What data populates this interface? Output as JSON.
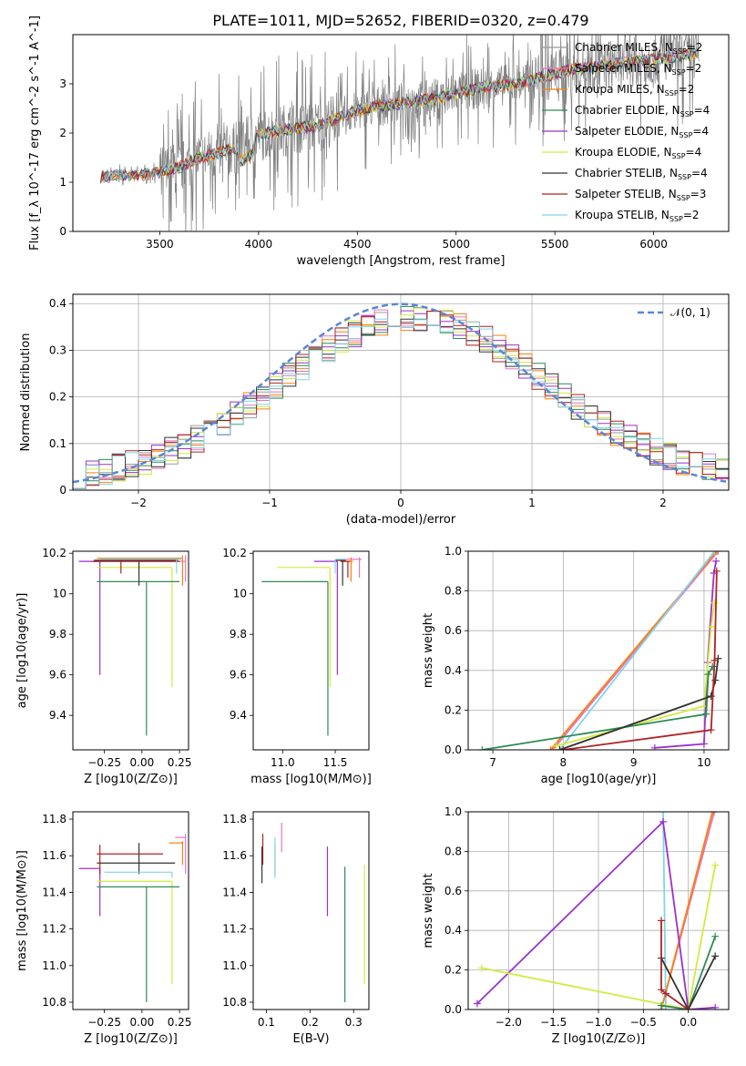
{
  "figure": {
    "title": "PLATE=1011, MJD=52652, FIBERID=0320, z=0.479"
  },
  "chart_data": [
    {
      "id": "spectrum",
      "type": "line",
      "xlabel": "wavelength [Angstrom, rest frame]",
      "ylabel": "Flux [f_λ 10^-17 erg cm^-2 s^-1 A^-1]",
      "xlim": [
        3060,
        6380
      ],
      "ylim": [
        0,
        4.0
      ],
      "xticks": [
        3500,
        4000,
        4500,
        5000,
        5500,
        6000
      ],
      "yticks": [
        0,
        1,
        2,
        3
      ],
      "grid": false,
      "legend_position": "top-right",
      "data_color": "#808080",
      "continuum": [
        [
          3200,
          1.1
        ],
        [
          3300,
          1.15
        ],
        [
          3400,
          1.15
        ],
        [
          3500,
          1.2
        ],
        [
          3600,
          1.3
        ],
        [
          3700,
          1.5
        ],
        [
          3800,
          1.6
        ],
        [
          3900,
          1.7
        ],
        [
          4000,
          1.95
        ],
        [
          4100,
          2.05
        ],
        [
          4200,
          2.1
        ],
        [
          4300,
          2.15
        ],
        [
          4400,
          2.3
        ],
        [
          4500,
          2.45
        ],
        [
          4600,
          2.55
        ],
        [
          4700,
          2.6
        ],
        [
          4800,
          2.65
        ],
        [
          4900,
          2.7
        ],
        [
          5000,
          2.8
        ],
        [
          5100,
          2.9
        ],
        [
          5200,
          2.95
        ],
        [
          5300,
          3.0
        ],
        [
          5400,
          3.1
        ],
        [
          5500,
          3.2
        ],
        [
          5600,
          3.3
        ],
        [
          5700,
          3.35
        ],
        [
          5800,
          3.4
        ],
        [
          5900,
          3.45
        ],
        [
          6000,
          3.5
        ],
        [
          6100,
          3.55
        ],
        [
          6200,
          3.6
        ]
      ],
      "series": [
        {
          "name": "Chabrier MILES, N_SSP=2",
          "label_main": "Chabrier MILES, N",
          "label_sub": "SSP",
          "label_tail": "=2",
          "color": "#9b9b9b"
        },
        {
          "name": "Salpeter MILES, N_SSP=2",
          "label_main": "Salpeter MILES, N",
          "label_sub": "SSP",
          "label_tail": "=2",
          "color": "#e377c2"
        },
        {
          "name": "Kroupa MILES, N_SSP=2",
          "label_main": "Kroupa MILES, N",
          "label_sub": "SSP",
          "label_tail": "=2",
          "color": "#ff7f0e"
        },
        {
          "name": "Chabrier ELODIE, N_SSP=4",
          "label_main": "Chabrier ELODIE, N",
          "label_sub": "SSP",
          "label_tail": "=4",
          "color": "#2e8b57"
        },
        {
          "name": "Salpeter ELODIE, N_SSP=4",
          "label_main": "Salpeter ELODIE, N",
          "label_sub": "SSP",
          "label_tail": "=4",
          "color": "#9932cc"
        },
        {
          "name": "Kroupa ELODIE, N_SSP=4",
          "label_main": "Kroupa ELODIE, N",
          "label_sub": "SSP",
          "label_tail": "=4",
          "color": "#d4ea3c"
        },
        {
          "name": "Chabrier STELIB, N_SSP=4",
          "label_main": "Chabrier STELIB, N",
          "label_sub": "SSP",
          "label_tail": "=4",
          "color": "#333333"
        },
        {
          "name": "Salpeter STELIB, N_SSP=3",
          "label_main": "Salpeter STELIB, N",
          "label_sub": "SSP",
          "label_tail": "=3",
          "color": "#b22222"
        },
        {
          "name": "Kroupa STELIB, N_SSP=2",
          "label_main": "Kroupa STELIB, N",
          "label_sub": "SSP",
          "label_tail": "=2",
          "color": "#7fd6e8"
        }
      ]
    },
    {
      "id": "residuals",
      "type": "line",
      "xlabel": "(data-model)/error",
      "ylabel": "Normed distribution",
      "xlim": [
        -2.5,
        2.5
      ],
      "ylim": [
        0,
        0.42
      ],
      "xticks": [
        -2,
        -1,
        0,
        1,
        2
      ],
      "yticks": [
        0.0,
        0.1,
        0.2,
        0.3,
        0.4
      ],
      "grid": true,
      "legend_position": "top-right",
      "legend_label": "𝒩(0, 1)",
      "normal_color": "#5b86d6",
      "bin_width": 0.1
    },
    {
      "id": "age_vs_Z",
      "type": "line",
      "xlabel": "Z [log10(Z/Z⊙)]",
      "ylabel": "age [log10(age/yr)]",
      "xlim": [
        -0.46,
        0.31
      ],
      "ylim": [
        9.23,
        10.21
      ],
      "xticks": [
        -0.25,
        0.0,
        0.25
      ],
      "xtick_labels": [
        "−0.25",
        "0.00",
        "0.25"
      ],
      "yticks": [
        9.4,
        9.6,
        9.8,
        10.0,
        10.2
      ],
      "grid": false,
      "segments": [
        {
          "color": "#e377c2",
          "h": [
            -0.35,
            0.29,
            10.16
          ],
          "v": [
            0.29,
            10.06,
            10.19
          ]
        },
        {
          "color": "#ff7f0e",
          "h": [
            -0.3,
            0.27,
            10.175
          ],
          "v": [
            0.27,
            10.04,
            10.19
          ]
        },
        {
          "color": "#9932cc",
          "h": [
            -0.42,
            -0.28,
            10.16
          ],
          "v": [
            -0.28,
            9.6,
            10.16
          ]
        },
        {
          "color": "#d4ea3c",
          "h": [
            -0.3,
            0.2,
            10.13
          ],
          "v": [
            0.2,
            9.54,
            10.13
          ]
        },
        {
          "color": "#2e8b57",
          "h": [
            -0.3,
            0.25,
            10.06
          ],
          "v": [
            0.03,
            9.3,
            10.06
          ]
        },
        {
          "color": "#333333",
          "h": [
            -0.32,
            0.24,
            10.165
          ],
          "v": [
            -0.02,
            10.04,
            10.17
          ]
        },
        {
          "color": "#b22222",
          "h": [
            -0.33,
            0.25,
            10.16
          ],
          "v": [
            -0.14,
            10.1,
            10.16
          ]
        },
        {
          "color": "#7fd6e8",
          "h": [
            -0.28,
            0.26,
            10.17
          ],
          "v": [
            0.23,
            10.1,
            10.17
          ]
        }
      ]
    },
    {
      "id": "age_vs_mass",
      "type": "line",
      "xlabel": "mass [log10(M/M⊙)]",
      "ylabel": "",
      "xlim": [
        10.72,
        11.82
      ],
      "ylim": [
        9.23,
        10.21
      ],
      "xticks": [
        11.0,
        11.5
      ],
      "xtick_labels": [
        "11.0",
        "11.5"
      ],
      "yticks": [
        9.4,
        9.6,
        9.8,
        10.0,
        10.2
      ],
      "grid": false,
      "segments": [
        {
          "color": "#e377c2",
          "h": [
            11.6,
            11.75,
            10.17
          ],
          "v": [
            11.73,
            10.08,
            10.18
          ]
        },
        {
          "color": "#ff7f0e",
          "h": [
            11.55,
            11.67,
            10.16
          ],
          "v": [
            11.65,
            10.06,
            10.18
          ]
        },
        {
          "color": "#9932cc",
          "h": [
            11.3,
            11.52,
            10.16
          ],
          "v": [
            11.52,
            9.6,
            10.16
          ]
        },
        {
          "color": "#d4ea3c",
          "h": [
            10.95,
            11.45,
            10.13
          ],
          "v": [
            11.45,
            9.54,
            10.13
          ]
        },
        {
          "color": "#2e8b57",
          "h": [
            10.8,
            11.43,
            10.06
          ],
          "v": [
            11.43,
            9.3,
            10.06
          ]
        },
        {
          "color": "#333333",
          "h": [
            11.5,
            11.6,
            10.165
          ],
          "v": [
            11.57,
            10.04,
            10.17
          ]
        },
        {
          "color": "#b22222",
          "h": [
            11.55,
            11.64,
            10.16
          ],
          "v": [
            11.62,
            10.08,
            10.16
          ]
        },
        {
          "color": "#7fd6e8",
          "h": [
            11.5,
            11.6,
            10.17
          ],
          "v": [
            11.5,
            10.1,
            10.17
          ]
        }
      ]
    },
    {
      "id": "weight_vs_age",
      "type": "line",
      "xlabel": "age [log10(age/yr)]",
      "ylabel": "mass weight",
      "xlim": [
        6.65,
        10.35
      ],
      "ylim": [
        0,
        1.0
      ],
      "xticks": [
        7,
        8,
        9,
        10
      ],
      "yticks": [
        0.0,
        0.2,
        0.4,
        0.6,
        0.8,
        1.0
      ],
      "ytick_labels": [
        "0.0",
        "0.2",
        "0.4",
        "0.6",
        "0.8",
        "1.0"
      ],
      "grid": true,
      "marker": "+",
      "series": [
        {
          "color": "#e377c2",
          "points": [
            [
              7.85,
              0.0
            ],
            [
              10.2,
              1.0
            ]
          ]
        },
        {
          "color": "#ff7f0e",
          "points": [
            [
              7.82,
              0.0
            ],
            [
              10.18,
              1.0
            ]
          ]
        },
        {
          "color": "#7fd6e8",
          "points": [
            [
              7.95,
              0.0
            ],
            [
              10.15,
              1.0
            ]
          ]
        },
        {
          "color": "#9932cc",
          "points": [
            [
              9.3,
              0.01
            ],
            [
              10.0,
              0.03
            ],
            [
              10.05,
              0.44
            ],
            [
              10.14,
              0.89
            ],
            [
              10.17,
              0.95
            ]
          ]
        },
        {
          "color": "#d4ea3c",
          "points": [
            [
              7.9,
              0.02
            ],
            [
              10.0,
              0.22
            ],
            [
              10.1,
              0.62
            ],
            [
              10.15,
              0.74
            ]
          ]
        },
        {
          "color": "#2e8b57",
          "points": [
            [
              6.85,
              0.0
            ],
            [
              10.03,
              0.18
            ],
            [
              10.06,
              0.38
            ],
            [
              10.12,
              0.42
            ]
          ]
        },
        {
          "color": "#333333",
          "points": [
            [
              7.95,
              0.0
            ],
            [
              10.1,
              0.27
            ],
            [
              10.16,
              0.35
            ],
            [
              10.2,
              0.46
            ]
          ]
        },
        {
          "color": "#b22222",
          "points": [
            [
              8.0,
              0.0
            ],
            [
              10.1,
              0.1
            ],
            [
              10.15,
              0.45
            ],
            [
              10.18,
              0.9
            ]
          ]
        }
      ]
    },
    {
      "id": "mass_vs_Z",
      "type": "line",
      "xlabel": "Z [log10(Z/Z⊙)]",
      "ylabel": "mass [log10(M/M⊙)]",
      "xlim": [
        -0.46,
        0.31
      ],
      "ylim": [
        10.76,
        11.84
      ],
      "xticks": [
        -0.25,
        0.0,
        0.25
      ],
      "xtick_labels": [
        "−0.25",
        "0.00",
        "0.25"
      ],
      "yticks": [
        10.8,
        11.0,
        11.2,
        11.4,
        11.6,
        11.8
      ],
      "ytick_labels": [
        "10.8",
        "11.0",
        "11.2",
        "11.4",
        "11.6",
        "11.8"
      ],
      "grid": false,
      "segments": [
        {
          "color": "#e377c2",
          "h": [
            0.22,
            0.29,
            11.7
          ],
          "v": [
            0.29,
            11.5,
            11.72
          ]
        },
        {
          "color": "#ff7f0e",
          "h": [
            0.18,
            0.27,
            11.67
          ],
          "v": [
            0.27,
            11.55,
            11.68
          ]
        },
        {
          "color": "#9932cc",
          "h": [
            -0.42,
            -0.28,
            11.53
          ],
          "v": [
            -0.28,
            11.27,
            11.53
          ]
        },
        {
          "color": "#d4ea3c",
          "h": [
            -0.3,
            0.2,
            11.46
          ],
          "v": [
            0.2,
            10.9,
            11.46
          ]
        },
        {
          "color": "#2e8b57",
          "h": [
            -0.3,
            0.25,
            11.43
          ],
          "v": [
            0.03,
            10.8,
            11.43
          ]
        },
        {
          "color": "#333333",
          "h": [
            -0.3,
            0.22,
            11.56
          ],
          "v": [
            -0.02,
            11.5,
            11.67
          ]
        },
        {
          "color": "#b22222",
          "h": [
            -0.3,
            0.14,
            11.61
          ],
          "v": [
            -0.28,
            11.5,
            11.66
          ]
        },
        {
          "color": "#7fd6e8",
          "h": [
            -0.25,
            0.2,
            11.51
          ],
          "v": [
            0.2,
            11.48,
            11.51
          ]
        }
      ]
    },
    {
      "id": "mass_vs_ebv",
      "type": "line",
      "xlabel": "E(B-V)",
      "ylabel": "",
      "xlim": [
        0.07,
        0.335
      ],
      "ylim": [
        10.76,
        11.84
      ],
      "xticks": [
        0.1,
        0.2,
        0.3
      ],
      "xtick_labels": [
        "0.1",
        "0.2",
        "0.3"
      ],
      "yticks": [
        10.8,
        11.0,
        11.2,
        11.4,
        11.6,
        11.8
      ],
      "ytick_labels": [
        "10.8",
        "11.0",
        "11.2",
        "11.4",
        "11.6",
        "11.8"
      ],
      "grid": false,
      "segments": [
        {
          "color": "#e377c2",
          "v": [
            0.135,
            11.62,
            11.78
          ]
        },
        {
          "color": "#ff7f0e",
          "v": [
            0.12,
            11.5,
            11.65
          ]
        },
        {
          "color": "#9932cc",
          "v": [
            0.24,
            11.27,
            11.65
          ]
        },
        {
          "color": "#d4ea3c",
          "v": [
            0.325,
            10.9,
            11.55
          ]
        },
        {
          "color": "#2e8b57",
          "v": [
            0.28,
            10.8,
            11.54
          ]
        },
        {
          "color": "#333333",
          "v": [
            0.09,
            11.45,
            11.65
          ]
        },
        {
          "color": "#b22222",
          "v": [
            0.092,
            11.55,
            11.72
          ]
        },
        {
          "color": "#7fd6e8",
          "v": [
            0.12,
            11.48,
            11.7
          ]
        }
      ]
    },
    {
      "id": "weight_vs_Z",
      "type": "line",
      "xlabel": "Z [log10(Z/Z⊙)]",
      "ylabel": "mass weight",
      "xlim": [
        -2.45,
        0.45
      ],
      "ylim": [
        0,
        1.0
      ],
      "xticks": [
        -2.0,
        -1.5,
        -1.0,
        -0.5,
        0.0
      ],
      "xtick_labels": [
        "−2.0",
        "−1.5",
        "−1.0",
        "−0.5",
        "0.0"
      ],
      "yticks": [
        0.0,
        0.2,
        0.4,
        0.6,
        0.8,
        1.0
      ],
      "ytick_labels": [
        "0.0",
        "0.2",
        "0.4",
        "0.6",
        "0.8",
        "1.0"
      ],
      "grid": true,
      "marker": "+",
      "series": [
        {
          "color": "#e377c2",
          "points": [
            [
              -0.3,
              0.0
            ],
            [
              0.29,
              1.0
            ]
          ]
        },
        {
          "color": "#ff7f0e",
          "points": [
            [
              -0.3,
              0.0
            ],
            [
              0.27,
              1.0
            ]
          ]
        },
        {
          "color": "#7fd6e8",
          "points": [
            [
              -0.25,
              0.0
            ],
            [
              -0.28,
              1.0
            ]
          ]
        },
        {
          "color": "#9932cc",
          "points": [
            [
              -2.35,
              0.03
            ],
            [
              -0.28,
              0.95
            ],
            [
              0.0,
              0.0
            ],
            [
              0.3,
              0.01
            ]
          ]
        },
        {
          "color": "#d4ea3c",
          "points": [
            [
              -2.3,
              0.21
            ],
            [
              0.0,
              0.0
            ],
            [
              0.3,
              0.73
            ]
          ]
        },
        {
          "color": "#2e8b57",
          "points": [
            [
              -0.3,
              0.02
            ],
            [
              0.0,
              0.0
            ],
            [
              0.3,
              0.37
            ]
          ]
        },
        {
          "color": "#333333",
          "points": [
            [
              -0.3,
              0.26
            ],
            [
              0.0,
              0.0
            ],
            [
              0.3,
              0.27
            ]
          ]
        },
        {
          "color": "#b22222",
          "points": [
            [
              -0.3,
              0.45
            ],
            [
              -0.3,
              0.1
            ],
            [
              -0.25,
              0.08
            ],
            [
              0.0,
              0.0
            ]
          ]
        }
      ]
    }
  ]
}
